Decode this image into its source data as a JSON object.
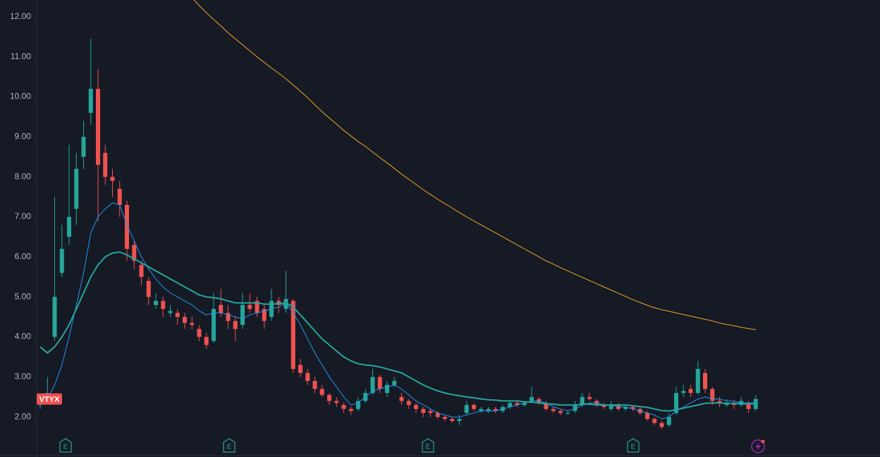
{
  "chart_data": {
    "type": "candlestick",
    "symbol": "VTYX",
    "ylim": [
      1.51,
      12.42
    ],
    "yticks": [
      {
        "value": 2,
        "label": "2.00"
      },
      {
        "value": 3,
        "label": "3.00"
      },
      {
        "value": 4,
        "label": "4.00"
      },
      {
        "value": 5,
        "label": "5.00"
      },
      {
        "value": 6,
        "label": "6.00"
      },
      {
        "value": 7,
        "label": "7.00"
      },
      {
        "value": 8,
        "label": "8.00"
      },
      {
        "value": 9,
        "label": "9.00"
      },
      {
        "value": 10,
        "label": "10.00"
      },
      {
        "value": 11,
        "label": "11.00"
      },
      {
        "value": 12,
        "label": "12.00"
      }
    ],
    "up_color": "#26a69a",
    "down_color": "#ef5350",
    "candles": {
      "open": [
        2.3,
        2.4,
        4.0,
        5.6,
        6.5,
        7.2,
        8.5,
        9.6,
        10.2,
        8.6,
        8.0,
        7.7,
        7.3,
        6.3,
        5.8,
        5.4,
        4.8,
        4.9,
        4.6,
        4.6,
        4.5,
        4.35,
        4.2,
        4.0,
        3.9,
        4.8,
        4.6,
        4.4,
        4.3,
        4.8,
        4.9,
        4.7,
        4.5,
        4.9,
        4.7,
        4.9,
        3.3,
        3.1,
        2.9,
        2.7,
        2.55,
        2.4,
        2.3,
        2.2,
        2.2,
        2.4,
        2.6,
        3.0,
        2.6,
        2.8,
        2.5,
        2.4,
        2.3,
        2.2,
        2.15,
        2.1,
        2.0,
        1.95,
        1.9,
        2.1,
        2.3,
        2.15,
        2.15,
        2.2,
        2.15,
        2.25,
        2.35,
        2.3,
        2.4,
        2.45,
        2.35,
        2.2,
        2.15,
        2.08,
        2.15,
        2.3,
        2.5,
        2.4,
        2.3,
        2.2,
        2.3,
        2.2,
        2.25,
        2.2,
        2.1,
        1.95,
        1.85,
        1.8,
        2.1,
        2.6,
        2.7,
        2.6,
        3.1,
        2.7,
        2.4,
        2.3,
        2.35,
        2.3,
        2.35,
        2.2
      ],
      "high": [
        2.5,
        3.0,
        7.5,
        6.8,
        8.8,
        8.6,
        9.4,
        11.45,
        10.7,
        8.8,
        8.2,
        7.9,
        7.4,
        6.4,
        5.9,
        5.5,
        5.1,
        5.0,
        4.8,
        4.7,
        4.6,
        4.5,
        4.3,
        4.1,
        5.1,
        5.2,
        4.8,
        4.5,
        5.1,
        5.1,
        5.0,
        4.8,
        5.2,
        5.0,
        5.65,
        4.95,
        3.45,
        3.2,
        3.0,
        2.8,
        2.6,
        2.5,
        2.35,
        2.25,
        2.5,
        2.7,
        3.2,
        3.05,
        2.9,
        3.0,
        2.6,
        2.45,
        2.35,
        2.25,
        2.2,
        2.15,
        2.05,
        2.0,
        2.05,
        2.4,
        2.35,
        2.25,
        2.25,
        2.25,
        2.3,
        2.4,
        2.4,
        2.4,
        2.75,
        2.5,
        2.4,
        2.25,
        2.2,
        2.15,
        2.4,
        2.6,
        2.6,
        2.45,
        2.35,
        2.4,
        2.35,
        2.3,
        2.3,
        2.25,
        2.15,
        2.0,
        1.9,
        2.1,
        2.75,
        2.8,
        2.8,
        3.4,
        3.2,
        2.75,
        2.5,
        2.45,
        2.4,
        2.5,
        2.4,
        2.55
      ],
      "low": [
        2.2,
        2.35,
        3.9,
        5.5,
        6.3,
        6.8,
        8.2,
        9.3,
        6.9,
        7.8,
        7.5,
        7.0,
        5.9,
        5.7,
        5.3,
        4.8,
        4.7,
        4.5,
        4.5,
        4.3,
        4.2,
        4.2,
        3.9,
        3.7,
        3.85,
        4.5,
        4.2,
        3.9,
        4.2,
        4.6,
        4.5,
        4.2,
        4.4,
        4.6,
        4.6,
        3.1,
        3.0,
        2.8,
        2.6,
        2.5,
        2.3,
        2.25,
        2.1,
        2.05,
        2.15,
        2.35,
        2.55,
        2.6,
        2.5,
        2.75,
        2.3,
        2.2,
        2.1,
        2.0,
        2.0,
        1.95,
        1.9,
        1.85,
        1.8,
        2.05,
        2.15,
        2.1,
        2.1,
        2.1,
        2.1,
        2.2,
        2.25,
        2.25,
        2.35,
        2.3,
        2.15,
        2.1,
        2.05,
        2.05,
        2.1,
        2.25,
        2.4,
        2.25,
        2.2,
        2.15,
        2.15,
        2.15,
        2.15,
        2.05,
        1.9,
        1.8,
        1.7,
        1.75,
        2.05,
        2.5,
        2.5,
        2.55,
        2.6,
        2.3,
        2.25,
        2.25,
        2.2,
        2.25,
        2.1,
        2.15
      ],
      "close": [
        2.4,
        2.6,
        5.0,
        6.2,
        7.0,
        8.2,
        9.0,
        10.2,
        8.3,
        8.0,
        7.9,
        7.3,
        6.2,
        5.9,
        5.5,
        5.0,
        4.9,
        4.7,
        4.65,
        4.5,
        4.35,
        4.3,
        4.0,
        3.8,
        4.7,
        4.6,
        4.4,
        4.2,
        4.8,
        4.7,
        4.6,
        4.4,
        4.9,
        4.8,
        4.95,
        3.2,
        3.1,
        2.9,
        2.7,
        2.55,
        2.4,
        2.35,
        2.2,
        2.15,
        2.4,
        2.6,
        3.0,
        2.7,
        2.8,
        2.9,
        2.4,
        2.3,
        2.2,
        2.1,
        2.1,
        2.0,
        1.95,
        1.9,
        1.95,
        2.3,
        2.2,
        2.2,
        2.2,
        2.15,
        2.25,
        2.35,
        2.3,
        2.35,
        2.5,
        2.35,
        2.2,
        2.15,
        2.1,
        2.1,
        2.3,
        2.5,
        2.45,
        2.3,
        2.25,
        2.3,
        2.2,
        2.25,
        2.2,
        2.1,
        1.95,
        1.85,
        1.75,
        2.0,
        2.6,
        2.65,
        2.6,
        3.2,
        2.7,
        2.4,
        2.35,
        2.35,
        2.3,
        2.4,
        2.2,
        2.45
      ]
    },
    "series": [
      {
        "color": "#2196f3",
        "width": 1,
        "values": [
          2.3,
          2.45,
          2.8,
          3.3,
          4.0,
          4.8,
          5.6,
          6.6,
          7.0,
          7.2,
          7.35,
          7.3,
          6.8,
          6.4,
          6.0,
          5.7,
          5.45,
          5.25,
          5.1,
          5.0,
          4.9,
          4.8,
          4.65,
          4.55,
          4.6,
          4.6,
          4.55,
          4.5,
          4.45,
          4.55,
          4.6,
          4.65,
          4.7,
          4.75,
          4.85,
          4.6,
          4.3,
          3.95,
          3.6,
          3.3,
          3.0,
          2.75,
          2.5,
          2.3,
          2.35,
          2.5,
          2.65,
          2.7,
          2.75,
          2.8,
          2.7,
          2.55,
          2.4,
          2.3,
          2.2,
          2.1,
          2.05,
          2.0,
          2.0,
          2.05,
          2.1,
          2.15,
          2.15,
          2.15,
          2.2,
          2.25,
          2.3,
          2.35,
          2.4,
          2.4,
          2.35,
          2.25,
          2.2,
          2.15,
          2.2,
          2.3,
          2.35,
          2.35,
          2.3,
          2.3,
          2.25,
          2.25,
          2.2,
          2.15,
          2.1,
          2.05,
          1.95,
          2.0,
          2.15,
          2.25,
          2.35,
          2.45,
          2.5,
          2.45,
          2.45,
          2.4,
          2.4,
          2.35,
          2.35,
          2.35
        ]
      },
      {
        "color": "#26a69a",
        "width": 2,
        "values": [
          3.75,
          3.6,
          3.75,
          4.0,
          4.3,
          4.7,
          5.1,
          5.5,
          5.8,
          6.0,
          6.1,
          6.12,
          6.05,
          5.95,
          5.85,
          5.75,
          5.65,
          5.55,
          5.45,
          5.35,
          5.25,
          5.15,
          5.05,
          5.0,
          4.98,
          4.95,
          4.9,
          4.85,
          4.85,
          4.85,
          4.85,
          4.82,
          4.82,
          4.83,
          4.85,
          4.75,
          4.55,
          4.35,
          4.15,
          3.95,
          3.8,
          3.65,
          3.5,
          3.4,
          3.33,
          3.3,
          3.28,
          3.25,
          3.2,
          3.15,
          3.1,
          3.0,
          2.9,
          2.8,
          2.72,
          2.65,
          2.6,
          2.56,
          2.53,
          2.5,
          2.48,
          2.45,
          2.43,
          2.42,
          2.4,
          2.4,
          2.4,
          2.38,
          2.37,
          2.35,
          2.33,
          2.32,
          2.3,
          2.3,
          2.3,
          2.32,
          2.32,
          2.3,
          2.3,
          2.3,
          2.3,
          2.3,
          2.28,
          2.26,
          2.24,
          2.2,
          2.16,
          2.15,
          2.18,
          2.22,
          2.26,
          2.3,
          2.34,
          2.35,
          2.35,
          2.34,
          2.34,
          2.33,
          2.33,
          2.33
        ]
      },
      {
        "color": "#f5a623",
        "width": 1,
        "values": [
          null,
          null,
          null,
          null,
          null,
          null,
          null,
          null,
          null,
          null,
          null,
          null,
          null,
          null,
          null,
          null,
          null,
          null,
          null,
          null,
          null,
          12.48,
          12.28,
          12.1,
          11.93,
          11.77,
          11.6,
          11.45,
          11.3,
          11.15,
          11.0,
          10.86,
          10.72,
          10.59,
          10.45,
          10.3,
          10.14,
          9.98,
          9.8,
          9.63,
          9.47,
          9.32,
          9.16,
          9.02,
          8.88,
          8.76,
          8.62,
          8.48,
          8.35,
          8.21,
          8.07,
          7.94,
          7.81,
          7.68,
          7.56,
          7.44,
          7.33,
          7.22,
          7.11,
          7.0,
          6.9,
          6.8,
          6.7,
          6.6,
          6.5,
          6.4,
          6.3,
          6.2,
          6.1,
          6.0,
          5.9,
          5.82,
          5.73,
          5.65,
          5.57,
          5.49,
          5.41,
          5.33,
          5.25,
          5.17,
          5.09,
          5.01,
          4.93,
          4.86,
          4.79,
          4.73,
          4.68,
          4.64,
          4.6,
          4.56,
          4.52,
          4.48,
          4.44,
          4.4,
          4.35,
          4.31,
          4.28,
          4.24,
          4.21,
          4.18
        ]
      }
    ]
  },
  "events": {
    "labels": [
      "E",
      "E",
      "E",
      "E"
    ]
  }
}
